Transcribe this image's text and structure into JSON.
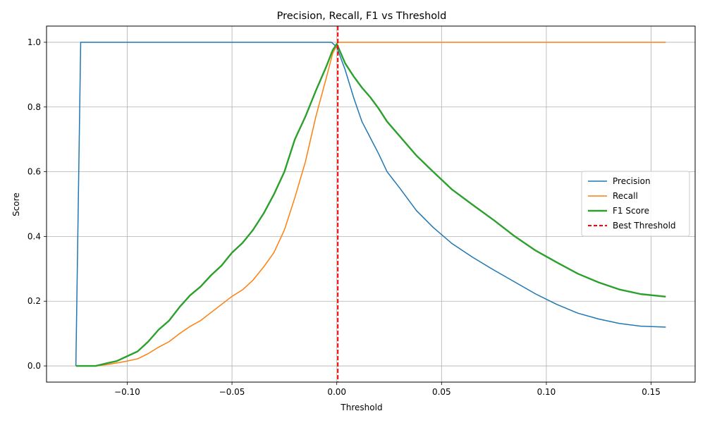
{
  "chart_data": {
    "type": "line",
    "title": "Precision, Recall, F1 vs Threshold",
    "xlabel": "Threshold",
    "ylabel": "Score",
    "xlim": [
      -0.1385,
      0.171
    ],
    "ylim": [
      -0.05,
      1.05
    ],
    "xticks": [
      -0.1,
      -0.05,
      0.0,
      0.05,
      0.1,
      0.15
    ],
    "xtick_labels": [
      "−0.10",
      "−0.05",
      "0.00",
      "0.05",
      "0.10",
      "0.15"
    ],
    "yticks": [
      0.0,
      0.2,
      0.4,
      0.6,
      0.8,
      1.0
    ],
    "ytick_labels": [
      "0.0",
      "0.2",
      "0.4",
      "0.6",
      "0.8",
      "1.0"
    ],
    "grid": true,
    "legend_position": "center-right",
    "series": [
      {
        "name": "Precision",
        "color": "#1f77b4",
        "width": 1.5,
        "x": [
          -0.1245,
          -0.1222,
          -0.12,
          -0.1,
          -0.08,
          -0.06,
          -0.04,
          -0.02,
          -0.0025,
          0.0,
          0.004,
          0.008,
          0.012,
          0.016,
          0.02,
          0.024,
          0.03,
          0.038,
          0.046,
          0.055,
          0.065,
          0.075,
          0.085,
          0.095,
          0.105,
          0.115,
          0.125,
          0.135,
          0.145,
          0.157
        ],
        "y": [
          0.0,
          1.0,
          1.0,
          1.0,
          1.0,
          1.0,
          1.0,
          1.0,
          1.0,
          0.985,
          0.915,
          0.83,
          0.755,
          0.705,
          0.655,
          0.6,
          0.55,
          0.48,
          0.428,
          0.378,
          0.335,
          0.296,
          0.259,
          0.222,
          0.19,
          0.163,
          0.145,
          0.131,
          0.123,
          0.12
        ]
      },
      {
        "name": "Recall",
        "color": "#ff7f0e",
        "width": 1.5,
        "x": [
          -0.1245,
          -0.115,
          -0.11,
          -0.105,
          -0.1,
          -0.095,
          -0.09,
          -0.085,
          -0.08,
          -0.075,
          -0.07,
          -0.065,
          -0.06,
          -0.055,
          -0.05,
          -0.045,
          -0.04,
          -0.035,
          -0.03,
          -0.025,
          -0.02,
          -0.015,
          -0.01,
          -0.005,
          -0.002,
          0.0,
          0.0005,
          0.157
        ],
        "y": [
          0.0,
          0.0,
          0.004,
          0.009,
          0.015,
          0.022,
          0.038,
          0.058,
          0.075,
          0.1,
          0.122,
          0.14,
          0.165,
          0.19,
          0.215,
          0.235,
          0.265,
          0.305,
          0.35,
          0.42,
          0.52,
          0.63,
          0.77,
          0.89,
          0.965,
          0.99,
          1.0,
          1.0
        ]
      },
      {
        "name": "F1 Score",
        "color": "#2ca02c",
        "width": 2.4,
        "x": [
          -0.1245,
          -0.115,
          -0.11,
          -0.105,
          -0.1,
          -0.095,
          -0.09,
          -0.085,
          -0.08,
          -0.075,
          -0.07,
          -0.065,
          -0.06,
          -0.055,
          -0.05,
          -0.045,
          -0.04,
          -0.035,
          -0.03,
          -0.025,
          -0.02,
          -0.015,
          -0.01,
          -0.005,
          -0.002,
          0.0,
          0.004,
          0.008,
          0.012,
          0.016,
          0.02,
          0.024,
          0.03,
          0.038,
          0.046,
          0.055,
          0.065,
          0.075,
          0.085,
          0.095,
          0.105,
          0.115,
          0.125,
          0.135,
          0.145,
          0.157
        ],
        "y": [
          0.0,
          0.0,
          0.008,
          0.015,
          0.03,
          0.045,
          0.075,
          0.112,
          0.14,
          0.182,
          0.218,
          0.245,
          0.28,
          0.31,
          0.35,
          0.38,
          0.42,
          0.47,
          0.53,
          0.6,
          0.7,
          0.77,
          0.85,
          0.925,
          0.975,
          0.995,
          0.935,
          0.895,
          0.86,
          0.83,
          0.795,
          0.755,
          0.71,
          0.65,
          0.6,
          0.545,
          0.497,
          0.45,
          0.4,
          0.356,
          0.32,
          0.285,
          0.258,
          0.236,
          0.222,
          0.214
        ]
      }
    ],
    "vertical_line": {
      "name": "Best Threshold",
      "x": 0.0005,
      "color": "#ff0000",
      "style": "dashed"
    }
  }
}
